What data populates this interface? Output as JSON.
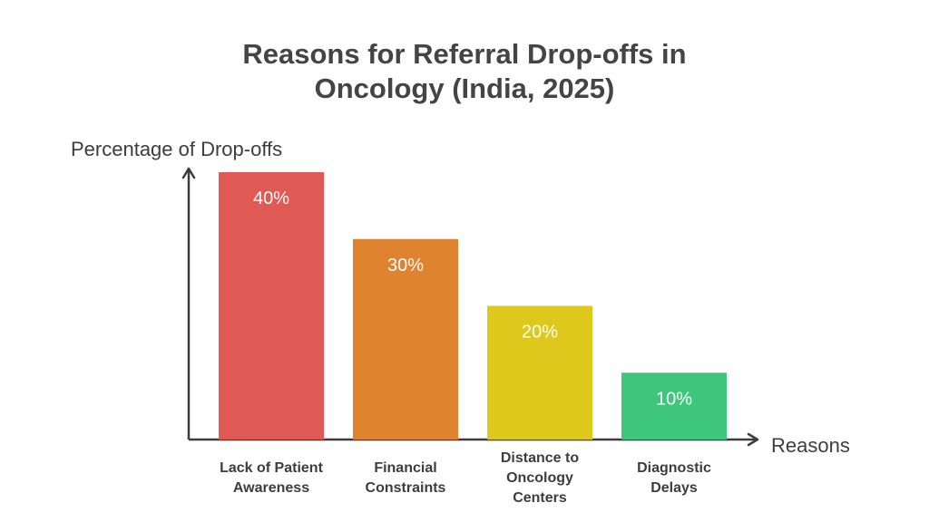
{
  "chart_data": {
    "type": "bar",
    "title_lines": [
      "Reasons for Referral Drop-offs in",
      "Oncology (India, 2025)"
    ],
    "xlabel": "Reasons",
    "ylabel": "Percentage of Drop-offs",
    "categories": [
      [
        "Lack of Patient",
        "Awareness"
      ],
      [
        "Financial",
        "Constraints"
      ],
      [
        "Distance to",
        "Oncology",
        "Centers"
      ],
      [
        "Diagnostic",
        "Delays"
      ]
    ],
    "values": [
      40,
      30,
      20,
      10
    ],
    "value_labels": [
      "40%",
      "30%",
      "20%",
      "10%"
    ],
    "colors": [
      "#e05a55",
      "#df8331",
      "#dfc81c",
      "#3fc67d"
    ],
    "ylim": [
      0,
      40
    ],
    "grid": false,
    "legend": "none",
    "axis_color": "#3d3d3d"
  }
}
